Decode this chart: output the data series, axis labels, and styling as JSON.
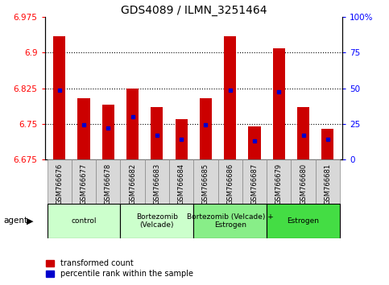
{
  "title": "GDS4089 / ILMN_3251464",
  "samples": [
    "GSM766676",
    "GSM766677",
    "GSM766678",
    "GSM766682",
    "GSM766683",
    "GSM766684",
    "GSM766685",
    "GSM766686",
    "GSM766687",
    "GSM766679",
    "GSM766680",
    "GSM766681"
  ],
  "bar_values": [
    6.935,
    6.805,
    6.79,
    6.825,
    6.785,
    6.76,
    6.805,
    6.935,
    6.745,
    6.91,
    6.785,
    6.74
  ],
  "blue_values": [
    6.822,
    6.748,
    6.742,
    6.766,
    6.727,
    6.718,
    6.748,
    6.822,
    6.715,
    6.818,
    6.727,
    6.718
  ],
  "ymin": 6.675,
  "ymax": 6.975,
  "yticks": [
    6.675,
    6.75,
    6.825,
    6.9,
    6.975
  ],
  "ytick_labels": [
    "6.675",
    "6.75",
    "6.825",
    "6.9",
    "6.975"
  ],
  "y2ticks": [
    0,
    25,
    50,
    75,
    100
  ],
  "y2tick_labels": [
    "0",
    "25",
    "50",
    "75",
    "100%"
  ],
  "bar_color": "#cc0000",
  "blue_color": "#0000cc",
  "gridline_vals": [
    6.75,
    6.825,
    6.9
  ],
  "group_defs": [
    {
      "start": 0,
      "end": 2,
      "label": "control",
      "color": "#ccffcc"
    },
    {
      "start": 3,
      "end": 5,
      "label": "Bortezomib\n(Velcade)",
      "color": "#ccffcc"
    },
    {
      "start": 6,
      "end": 8,
      "label": "Bortezomib (Velcade) +\nEstrogen",
      "color": "#88ee88"
    },
    {
      "start": 9,
      "end": 11,
      "label": "Estrogen",
      "color": "#44dd44"
    }
  ],
  "legend_red": "transformed count",
  "legend_blue": "percentile rank within the sample",
  "bar_width": 0.5,
  "figsize": [
    4.83,
    3.54
  ],
  "dpi": 100
}
